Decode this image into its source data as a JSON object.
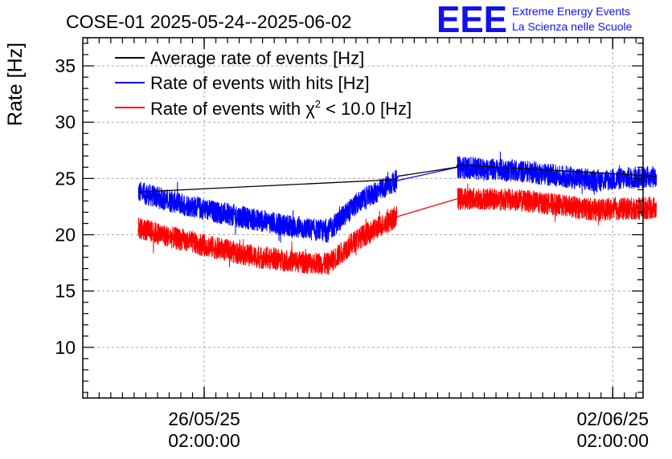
{
  "chart_data": {
    "type": "line",
    "title": "COSE-01 2025-05-24--2025-06-02",
    "ylabel": "Rate [Hz]",
    "xlabel": "",
    "ylim": [
      5.5,
      37.5
    ],
    "yticks": [
      10,
      15,
      20,
      25,
      30,
      35
    ],
    "xlim_days_since_2025_05_24": [
      0.0,
      9.6
    ],
    "xticks": [
      {
        "day": 2.08,
        "label_date": "26/05/25",
        "label_time": "02:00:00"
      },
      {
        "day": 9.08,
        "label_date": "02/06/25",
        "label_time": "02:00:00"
      }
    ],
    "grid": true,
    "legend_position": "top-left",
    "series": [
      {
        "name": "Average rate of events [Hz]",
        "color": "#000000",
        "x": [
          0.95,
          5.38,
          5.4,
          6.4,
          6.42,
          9.83
        ],
        "y": [
          23.8,
          24.9,
          25.2,
          26.0,
          26.2,
          25.2
        ],
        "noise": 0.0
      },
      {
        "name": "Rate of events with hits [Hz]",
        "color": "#0000ff",
        "x": [
          0.95,
          1.5,
          2.3,
          3.0,
          3.7,
          4.2,
          4.7,
          5.38,
          6.42,
          7.0,
          7.6,
          8.2,
          8.8,
          9.3,
          9.83
        ],
        "y": [
          23.8,
          23.0,
          22.0,
          21.3,
          20.6,
          20.3,
          22.8,
          24.8,
          26.0,
          25.8,
          25.6,
          25.2,
          24.8,
          25.0,
          25.2
        ],
        "noise": 1.0
      },
      {
        "name": "Rate of events with χ² < 10.0 [Hz]",
        "color": "#ff0000",
        "x": [
          0.95,
          1.5,
          2.3,
          3.0,
          3.7,
          4.2,
          4.7,
          5.38,
          6.42,
          7.0,
          7.6,
          8.2,
          8.8,
          9.3,
          9.83
        ],
        "y": [
          20.6,
          19.8,
          18.8,
          18.0,
          17.6,
          17.4,
          19.6,
          21.6,
          23.2,
          23.2,
          23.0,
          22.6,
          22.2,
          22.3,
          22.4
        ],
        "noise": 1.0
      }
    ],
    "gap_connector_days": [
      5.38,
      6.42
    ]
  },
  "logo": {
    "text": "EEE",
    "line1": "Extreme Energy Events",
    "line2": "La Scienza nelle Scuole",
    "color": "#1111ee"
  },
  "legend": {
    "avg_label": "Average rate of events [Hz]",
    "hits_label": "Rate of events with hits [Hz]",
    "chi_prefix": "Rate of events with χ",
    "chi_sup": "2",
    "chi_suffix": " < 10.0 [Hz]"
  }
}
